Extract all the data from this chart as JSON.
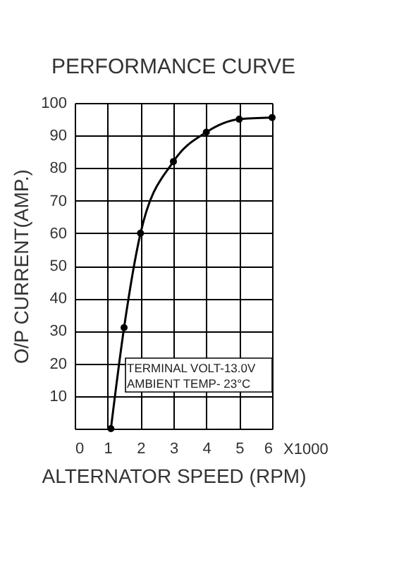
{
  "chart_data": {
    "type": "line",
    "title": "PERFORMANCE CURVE",
    "xlabel": "ALTERNATOR SPEED (RPM)",
    "ylabel": "O/P CURRENT(AMP.)",
    "x": [
      1.1,
      1.5,
      2,
      3,
      4,
      5,
      6
    ],
    "values": [
      0,
      31,
      60,
      82,
      91,
      95,
      95.5
    ],
    "color": "#000000",
    "marker": "circle",
    "line_style": "solid",
    "grid": true,
    "xlim": [
      0,
      6
    ],
    "xticks": [
      0,
      1,
      2,
      3,
      4,
      5,
      6
    ],
    "ylim": [
      0,
      100
    ],
    "yticks": [
      {
        "value": 0,
        "label": null
      },
      10,
      20,
      30,
      40,
      50,
      60,
      70,
      80,
      90,
      100
    ],
    "annotations": [
      "TERMINAL VOLT-13.0V",
      "AMBIENT TEMP- 23°C",
      "X1000"
    ]
  }
}
